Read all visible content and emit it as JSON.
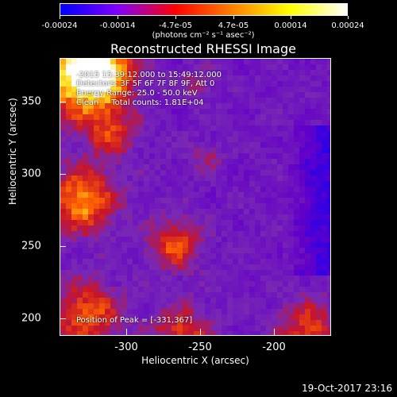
{
  "colorbar": {
    "tick_labels": [
      "-0.00024",
      "-0.00014",
      "-4.7e-05",
      "4.7e-05",
      "0.00014",
      "0.00024"
    ],
    "units_label": "(photons cm⁻² s⁻¹ asec⁻²)",
    "colors": [
      "#0000ff",
      "#8000ff",
      "#ff0000",
      "#ff8000",
      "#ffff00",
      "#ffffff"
    ]
  },
  "title": "Reconstructed RHESSI Image",
  "overlay": {
    "line1": "-2015 15:39:12.000 to 15:49:12.000",
    "line2": "Detectors: 3F 5F 6F 7F 8F 9F, Att 0",
    "line3": "Energy Range: 25.0 - 50.0 keV",
    "line4": "Clean     Total counts: 1.81E+04",
    "peak": "Position of Peak = [-331,367]"
  },
  "axes": {
    "xlabel": "Heliocentric X (arcsec)",
    "ylabel": "Heliocentric Y (arcsec)",
    "x_ticks": [
      "-300",
      "-250",
      "-200"
    ],
    "y_ticks": [
      "350",
      "300",
      "250",
      "200"
    ]
  },
  "chart_data": {
    "type": "heatmap",
    "title": "Reconstructed RHESSI Image",
    "xlabel": "Heliocentric X (arcsec)",
    "ylabel": "Heliocentric Y (arcsec)",
    "xlim": [
      -348,
      -164
    ],
    "ylim": [
      187,
      375
    ],
    "x_ticks": [
      -300,
      -250,
      -200
    ],
    "y_ticks": [
      350,
      300,
      250,
      200
    ],
    "zlim": [
      -0.00024,
      0.00024
    ],
    "peak_position": [
      -331,
      367
    ]
  },
  "timestamp": "19-Oct-2017 23:16"
}
